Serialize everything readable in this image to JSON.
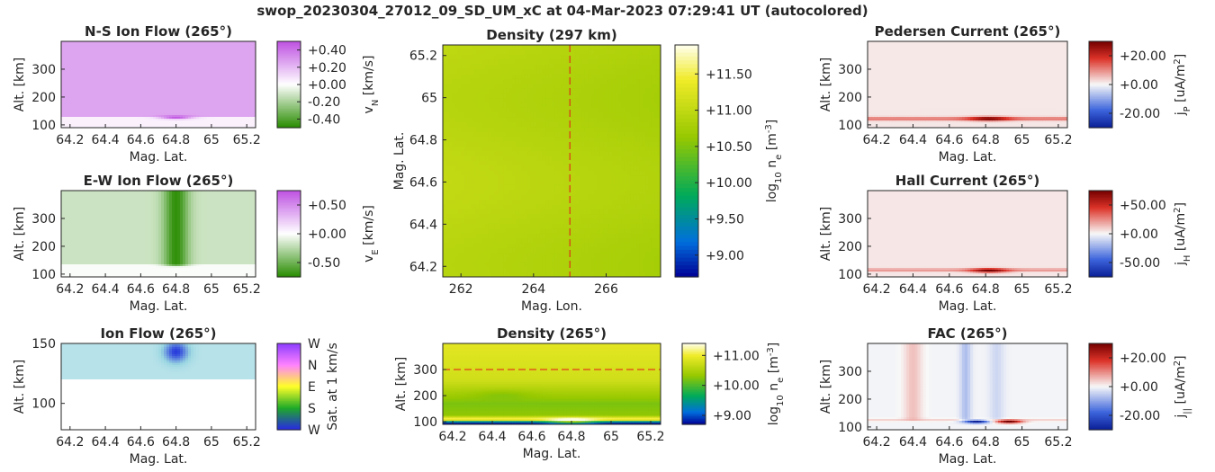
{
  "figure": {
    "title": "swop_20230304_27012_09_SD_UM_xC at 04-Mar-2023 07:29:41 UT (autocolored)"
  },
  "chart_data": [
    {
      "id": "ns",
      "type": "heatmap",
      "title": "N-S Ion Flow (265°)",
      "xlabel": "Mag. Lat.",
      "ylabel": "Alt. [km]",
      "xlim": [
        64.15,
        65.25
      ],
      "ylim": [
        90,
        400
      ],
      "xticks": [
        64.2,
        64.4,
        64.6,
        64.8,
        65.0,
        65.2
      ],
      "xtick_labels": [
        "64.2",
        "64.4",
        "64.6",
        "64.8",
        "65",
        "65.2"
      ],
      "yticks": [
        100,
        200,
        300
      ],
      "ytick_labels": [
        "100",
        "200",
        "300"
      ],
      "colormap": "greenwhitepurple",
      "clim": [
        -0.5,
        0.5
      ],
      "colorbar_label": "v",
      "colorbar_sub": "N",
      "colorbar_unit": " [km/s]",
      "colorbar_ticks": [
        0.4,
        0.2,
        0.0,
        -0.2,
        -0.4
      ],
      "colorbar_tick_labels": [
        "+0.40",
        "+0.20",
        "+0.00",
        "-0.20",
        "-0.40"
      ],
      "features": [
        {
          "kind": "band",
          "alt_min": 130,
          "alt_max": 400,
          "value": 0.26
        },
        {
          "kind": "band",
          "alt_min": 90,
          "alt_max": 130,
          "value": 0.04
        },
        {
          "kind": "blob",
          "lat": 64.8,
          "alt": 127,
          "lat_width": 0.09,
          "alt_width": 6,
          "value": 0.5
        }
      ]
    },
    {
      "id": "ew",
      "type": "heatmap",
      "title": "E-W Ion Flow (265°)",
      "xlabel": "Mag. Lat.",
      "ylabel": "Alt. [km]",
      "xlim": [
        64.15,
        65.25
      ],
      "ylim": [
        90,
        400
      ],
      "xticks": [
        64.2,
        64.4,
        64.6,
        64.8,
        65.0,
        65.2
      ],
      "xtick_labels": [
        "64.2",
        "64.4",
        "64.6",
        "64.8",
        "65",
        "65.2"
      ],
      "yticks": [
        100,
        200,
        300
      ],
      "ytick_labels": [
        "100",
        "200",
        "300"
      ],
      "colormap": "greenwhitepurple",
      "clim": [
        -0.75,
        0.75
      ],
      "colorbar_label": "v",
      "colorbar_sub": "E",
      "colorbar_unit": " [km/s]",
      "colorbar_ticks": [
        0.5,
        0.0,
        -0.5
      ],
      "colorbar_tick_labels": [
        "+0.50",
        "+0.00",
        "-0.50"
      ],
      "features": [
        {
          "kind": "band",
          "alt_min": 135,
          "alt_max": 400,
          "value": -0.18
        },
        {
          "kind": "band",
          "alt_min": 90,
          "alt_max": 135,
          "value": -0.02
        },
        {
          "kind": "column",
          "lat": 64.8,
          "lat_width": 0.07,
          "alt_min": 135,
          "alt_max": 400,
          "value": -0.72
        }
      ]
    },
    {
      "id": "ionflow",
      "type": "heatmap",
      "title": "Ion Flow (265°)",
      "xlabel": "Mag. Lat.",
      "ylabel": "Alt. [km]",
      "xlim": [
        64.15,
        65.25
      ],
      "ylim": [
        78,
        150
      ],
      "xticks": [
        64.2,
        64.4,
        64.6,
        64.8,
        65.0,
        65.2
      ],
      "xtick_labels": [
        "64.2",
        "64.4",
        "64.6",
        "64.8",
        "65",
        "65.2"
      ],
      "yticks": [
        100,
        150
      ],
      "ytick_labels": [
        "100",
        "150"
      ],
      "colormap": "direction",
      "colorbar_label": "Sat. at 1 km/s",
      "colorbar_sub": "",
      "colorbar_unit": "",
      "colorbar_tick_labels": [
        "W",
        "N",
        "E",
        "S",
        "W"
      ],
      "features": [
        {
          "kind": "band",
          "alt_min": 120,
          "alt_max": 150,
          "value": 0.35
        },
        {
          "kind": "band",
          "alt_min": 78,
          "alt_max": 120,
          "value": 0.0
        },
        {
          "kind": "blob",
          "lat": 64.8,
          "alt": 143,
          "lat_width": 0.07,
          "alt_width": 9,
          "value": 1.0
        }
      ]
    },
    {
      "id": "density_map",
      "type": "heatmap",
      "title": "Density (297 km)",
      "xlabel": "Mag. Lon.",
      "ylabel": "Mag. Lat.",
      "xlim": [
        261.5,
        267.5
      ],
      "ylim": [
        64.15,
        65.25
      ],
      "xticks": [
        262,
        264,
        266
      ],
      "xtick_labels": [
        "262",
        "264",
        "266"
      ],
      "yticks": [
        64.2,
        64.4,
        64.6,
        64.8,
        65.0,
        65.2
      ],
      "ytick_labels": [
        "64.2",
        "64.4",
        "64.6",
        "64.8",
        "65",
        "65.2"
      ],
      "colormap": "density",
      "clim": [
        8.7,
        11.9
      ],
      "colorbar_label": "log",
      "colorbar_sub": "10",
      "colorbar_unit": " n",
      "colorbar_ticks": [
        11.5,
        11.0,
        10.5,
        10.0,
        9.5,
        9.0
      ],
      "colorbar_tick_labels": [
        "+11.50",
        "+11.00",
        "+10.50",
        "+10.00",
        "+9.50",
        "+9.00"
      ],
      "marker_line": {
        "orientation": "vertical",
        "value": 265
      },
      "features": [
        {
          "kind": "band",
          "alt_min": 64.15,
          "alt_max": 65.25,
          "value": 10.95
        }
      ]
    },
    {
      "id": "density_alt",
      "type": "heatmap",
      "title": "Density (265°)",
      "xlabel": "Mag. Lat.",
      "ylabel": "Alt. [km]",
      "xlim": [
        64.15,
        65.25
      ],
      "ylim": [
        90,
        400
      ],
      "xticks": [
        64.2,
        64.4,
        64.6,
        64.8,
        65.0,
        65.2
      ],
      "xtick_labels": [
        "64.2",
        "64.4",
        "64.6",
        "64.8",
        "65",
        "65.2"
      ],
      "yticks": [
        100,
        200,
        300
      ],
      "ytick_labels": [
        "100",
        "200",
        "300"
      ],
      "colormap": "density",
      "clim": [
        8.7,
        11.4
      ],
      "colorbar_label": "log",
      "colorbar_sub": "10",
      "colorbar_unit": " n",
      "colorbar_ticks": [
        11.0,
        10.0,
        9.0
      ],
      "colorbar_tick_labels": [
        "+11.00",
        "+10.00",
        "+9.00"
      ],
      "marker_line": {
        "orientation": "horizontal",
        "value": 300
      },
      "features": [
        {
          "kind": "profile"
        }
      ]
    },
    {
      "id": "pedersen",
      "type": "heatmap",
      "title": "Pedersen Current (265°)",
      "xlabel": "Mag. Lat.",
      "ylabel": "Alt. [km]",
      "xlim": [
        64.15,
        65.25
      ],
      "ylim": [
        90,
        400
      ],
      "xticks": [
        64.2,
        64.4,
        64.6,
        64.8,
        65.0,
        65.2
      ],
      "xtick_labels": [
        "64.2",
        "64.4",
        "64.6",
        "64.8",
        "65",
        "65.2"
      ],
      "yticks": [
        100,
        200,
        300
      ],
      "ytick_labels": [
        "100",
        "200",
        "300"
      ],
      "colormap": "bluewhitered",
      "clim": [
        -30,
        30
      ],
      "colorbar_label": "j",
      "colorbar_sub": "P",
      "colorbar_unit": " [uA/m",
      "colorbar_ticks": [
        20,
        0,
        -20
      ],
      "colorbar_tick_labels": [
        "+20.00",
        "+0.00",
        "-20.00"
      ],
      "features": [
        {
          "kind": "band",
          "alt_min": 90,
          "alt_max": 400,
          "value": 1.5
        },
        {
          "kind": "stripe",
          "alt": 122,
          "alt_width": 6,
          "value": 12
        },
        {
          "kind": "blob",
          "lat": 64.82,
          "alt": 122,
          "lat_width": 0.11,
          "alt_width": 7,
          "value": 30
        }
      ]
    },
    {
      "id": "hall",
      "type": "heatmap",
      "title": "Hall Current (265°)",
      "xlabel": "Mag. Lat.",
      "ylabel": "Alt. [km]",
      "xlim": [
        64.15,
        65.25
      ],
      "ylim": [
        90,
        400
      ],
      "xticks": [
        64.2,
        64.4,
        64.6,
        64.8,
        65.0,
        65.2
      ],
      "xtick_labels": [
        "64.2",
        "64.4",
        "64.6",
        "64.8",
        "65",
        "65.2"
      ],
      "yticks": [
        100,
        200,
        300
      ],
      "ytick_labels": [
        "100",
        "200",
        "300"
      ],
      "colormap": "bluewhitered",
      "clim": [
        -75,
        75
      ],
      "colorbar_label": "j",
      "colorbar_sub": "H",
      "colorbar_unit": " [uA/m",
      "colorbar_ticks": [
        50,
        0,
        -50
      ],
      "colorbar_tick_labels": [
        "+50.00",
        "+0.00",
        "-50.00"
      ],
      "features": [
        {
          "kind": "band",
          "alt_min": 90,
          "alt_max": 400,
          "value": 4
        },
        {
          "kind": "stripe",
          "alt": 115,
          "alt_width": 5,
          "value": 22
        },
        {
          "kind": "blob",
          "lat": 64.82,
          "alt": 113,
          "lat_width": 0.1,
          "alt_width": 7,
          "value": 75
        }
      ]
    },
    {
      "id": "fac",
      "type": "heatmap",
      "title": "FAC (265°)",
      "xlabel": "Mag. Lat.",
      "ylabel": "Alt. [km]",
      "xlim": [
        64.15,
        65.25
      ],
      "ylim": [
        90,
        400
      ],
      "xticks": [
        64.2,
        64.4,
        64.6,
        64.8,
        65.0,
        65.2
      ],
      "xtick_labels": [
        "64.2",
        "64.4",
        "64.6",
        "64.8",
        "65",
        "65.2"
      ],
      "yticks": [
        100,
        200,
        300
      ],
      "ytick_labels": [
        "100",
        "200",
        "300"
      ],
      "colormap": "bluewhitered",
      "clim": [
        -30,
        30
      ],
      "colorbar_label": "j",
      "colorbar_sub": "||",
      "colorbar_unit": " [uA/m",
      "colorbar_ticks": [
        20,
        0,
        -20
      ],
      "colorbar_tick_labels": [
        "+20.00",
        "+0.00",
        "-20.00"
      ],
      "features": [
        {
          "kind": "band",
          "alt_min": 90,
          "alt_max": 400,
          "value": -0.5
        },
        {
          "kind": "column",
          "lat": 64.4,
          "lat_width": 0.05,
          "alt_min": 130,
          "alt_max": 400,
          "value": 5
        },
        {
          "kind": "column",
          "lat": 64.69,
          "lat_width": 0.03,
          "alt_min": 130,
          "alt_max": 400,
          "value": -7
        },
        {
          "kind": "column",
          "lat": 64.86,
          "lat_width": 0.04,
          "alt_min": 130,
          "alt_max": 400,
          "value": -4
        },
        {
          "kind": "stripe",
          "alt": 125,
          "alt_width": 5,
          "value": 4
        },
        {
          "kind": "blob",
          "lat": 64.75,
          "alt": 119,
          "lat_width": 0.07,
          "alt_width": 6,
          "value": -30
        },
        {
          "kind": "blob",
          "lat": 64.93,
          "alt": 119,
          "lat_width": 0.07,
          "alt_width": 6,
          "value": 30
        }
      ]
    }
  ]
}
